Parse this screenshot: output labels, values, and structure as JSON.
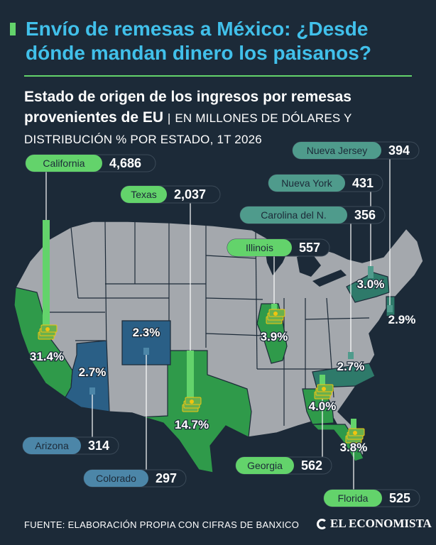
{
  "title": "Envío de remesas a México: ¿Desde dónde mandan dinero los paisanos?",
  "subtitle_bold": "Estado de origen de los ingresos por remesas provenientes de EU",
  "subtitle_separator": "|",
  "subtitle_rest": "EN MILLONES DE DÓLARES Y DISTRIBUCIÓN % POR ESTADO, 1T 2026",
  "source": "FUENTE: ELABORACIÓN PROPIA CON CIFRAS DE BANXICO",
  "brand": "EL ECONOMISTA",
  "colors": {
    "green_label": "#63d36b",
    "teal_label": "#4f9b8c",
    "blue_label": "#4c86a8",
    "map_base": "#a4a8ad",
    "green_state": "#2f9a4a",
    "teal_state": "#2e7a6a",
    "blue_state": "#2a5f86",
    "title": "#41c0ea"
  },
  "chart_data": {
    "type": "map",
    "units": "millones de dólares",
    "series": [
      {
        "state": "California",
        "value": 4686,
        "share_pct": "31.4%",
        "color": "green"
      },
      {
        "state": "Texas",
        "value": 2037,
        "share_pct": "14.7%",
        "color": "green"
      },
      {
        "state": "Georgia",
        "value": 562,
        "share_pct": "4.0%",
        "color": "green"
      },
      {
        "state": "Illinois",
        "value": 557,
        "share_pct": "3.9%",
        "color": "green"
      },
      {
        "state": "Florida",
        "value": 525,
        "share_pct": "3.8%",
        "color": "green"
      },
      {
        "state": "Nueva York",
        "value": 431,
        "share_pct": "3.0%",
        "color": "teal"
      },
      {
        "state": "Nueva Jersey",
        "value": 394,
        "share_pct": "2.9%",
        "color": "teal"
      },
      {
        "state": "Carolina del N.",
        "value": 356,
        "share_pct": "2.7%",
        "color": "teal"
      },
      {
        "state": "Arizona",
        "value": 314,
        "share_pct": "2.7%",
        "color": "blue"
      },
      {
        "state": "Colorado",
        "value": 297,
        "share_pct": "2.3%",
        "color": "blue"
      }
    ]
  }
}
